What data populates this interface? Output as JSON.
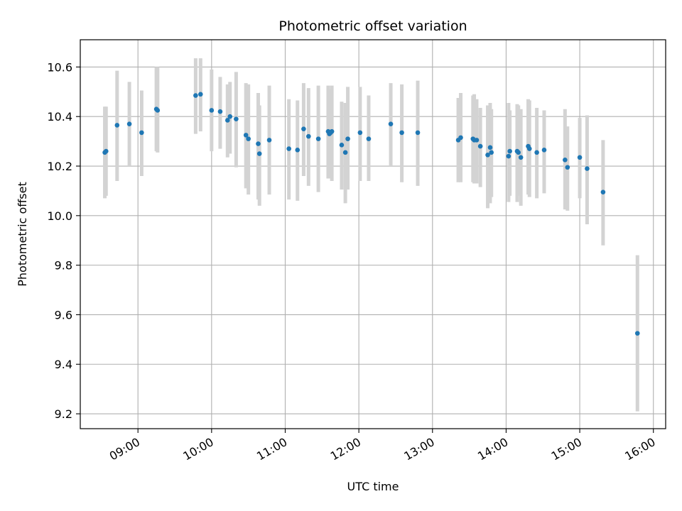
{
  "chart_data": {
    "type": "scatter",
    "title": "Photometric offset variation",
    "xlabel": "UTC time",
    "ylabel": "Photometric offset",
    "x_tick_labels": [
      "09:00",
      "10:00",
      "11:00",
      "12:00",
      "13:00",
      "14:00",
      "15:00",
      "16:00"
    ],
    "y_tick_labels": [
      "9.2",
      "9.4",
      "9.6",
      "9.8",
      "10.0",
      "10.2",
      "10.4",
      "10.6"
    ],
    "x_ticks_hours": [
      9,
      10,
      11,
      12,
      13,
      14,
      15,
      16
    ],
    "y_ticks": [
      9.2,
      9.4,
      9.6,
      9.8,
      10.0,
      10.2,
      10.4,
      10.6
    ],
    "xlim": [
      "08:13",
      "16:10"
    ],
    "ylim": [
      9.14,
      10.71
    ],
    "grid": true,
    "colors": {
      "point": "#1f77b4",
      "errorbar": "#d3d3d3",
      "grid": "#b0b0b0"
    },
    "series": [
      {
        "x": [
          "08:33",
          "08:34",
          "08:43",
          "08:53",
          "09:03",
          "09:15",
          "09:16",
          "09:47",
          "09:51",
          "10:00",
          "10:07",
          "10:13",
          "10:15",
          "10:20",
          "10:28",
          "10:30",
          "10:38",
          "10:39",
          "10:47",
          "11:03",
          "11:10",
          "11:15",
          "11:19",
          "11:27",
          "11:35",
          "11:36",
          "11:37",
          "11:38",
          "11:46",
          "11:49",
          "11:51",
          "12:01",
          "12:08",
          "12:26",
          "12:35",
          "12:48",
          "13:21",
          "13:23",
          "13:33",
          "13:34",
          "13:36",
          "13:39",
          "13:45",
          "13:47",
          "13:48",
          "14:02",
          "14:03",
          "14:09",
          "14:10",
          "14:12",
          "14:18",
          "14:19",
          "14:25",
          "14:31",
          "14:48",
          "14:50",
          "15:00",
          "15:06",
          "15:19",
          "15:47"
        ],
        "y": [
          10.255,
          10.26,
          10.365,
          10.37,
          10.335,
          10.43,
          10.425,
          10.485,
          10.49,
          10.425,
          10.42,
          10.385,
          10.4,
          10.39,
          10.325,
          10.31,
          10.29,
          10.25,
          10.305,
          10.27,
          10.265,
          10.35,
          10.32,
          10.31,
          10.34,
          10.33,
          10.335,
          10.34,
          10.285,
          10.255,
          10.31,
          10.335,
          10.31,
          10.37,
          10.335,
          10.335,
          10.305,
          10.315,
          10.31,
          10.305,
          10.305,
          10.28,
          10.245,
          10.275,
          10.255,
          10.24,
          10.26,
          10.26,
          10.255,
          10.235,
          10.28,
          10.27,
          10.255,
          10.265,
          10.225,
          10.195,
          10.235,
          10.19,
          10.095,
          9.525
        ],
        "err_lo": [
          10.07,
          10.08,
          10.14,
          10.2,
          10.16,
          10.26,
          10.255,
          10.33,
          10.34,
          10.26,
          10.27,
          10.235,
          10.25,
          10.195,
          10.11,
          10.085,
          10.065,
          10.04,
          10.085,
          10.065,
          10.06,
          10.16,
          10.12,
          10.095,
          10.15,
          10.15,
          10.175,
          10.14,
          10.105,
          10.05,
          10.105,
          10.14,
          10.14,
          10.2,
          10.135,
          10.12,
          10.135,
          10.135,
          10.135,
          10.13,
          10.13,
          10.115,
          10.03,
          10.05,
          10.075,
          10.055,
          10.08,
          10.055,
          10.08,
          10.04,
          10.085,
          10.075,
          10.07,
          10.09,
          10.025,
          10.02,
          10.07,
          9.965,
          9.88,
          9.21
        ],
        "err_hi": [
          10.44,
          10.44,
          10.585,
          10.54,
          10.505,
          10.6,
          10.6,
          10.635,
          10.635,
          10.59,
          10.56,
          10.53,
          10.54,
          10.58,
          10.535,
          10.53,
          10.495,
          10.445,
          10.525,
          10.47,
          10.465,
          10.535,
          10.515,
          10.525,
          10.525,
          10.51,
          10.495,
          10.525,
          10.46,
          10.455,
          10.52,
          10.52,
          10.485,
          10.535,
          10.53,
          10.545,
          10.475,
          10.495,
          10.485,
          10.49,
          10.47,
          10.435,
          10.445,
          10.455,
          10.43,
          10.455,
          10.425,
          10.45,
          10.445,
          10.43,
          10.47,
          10.465,
          10.435,
          10.425,
          10.43,
          10.36,
          10.395,
          10.405,
          10.305,
          9.84
        ]
      }
    ]
  }
}
